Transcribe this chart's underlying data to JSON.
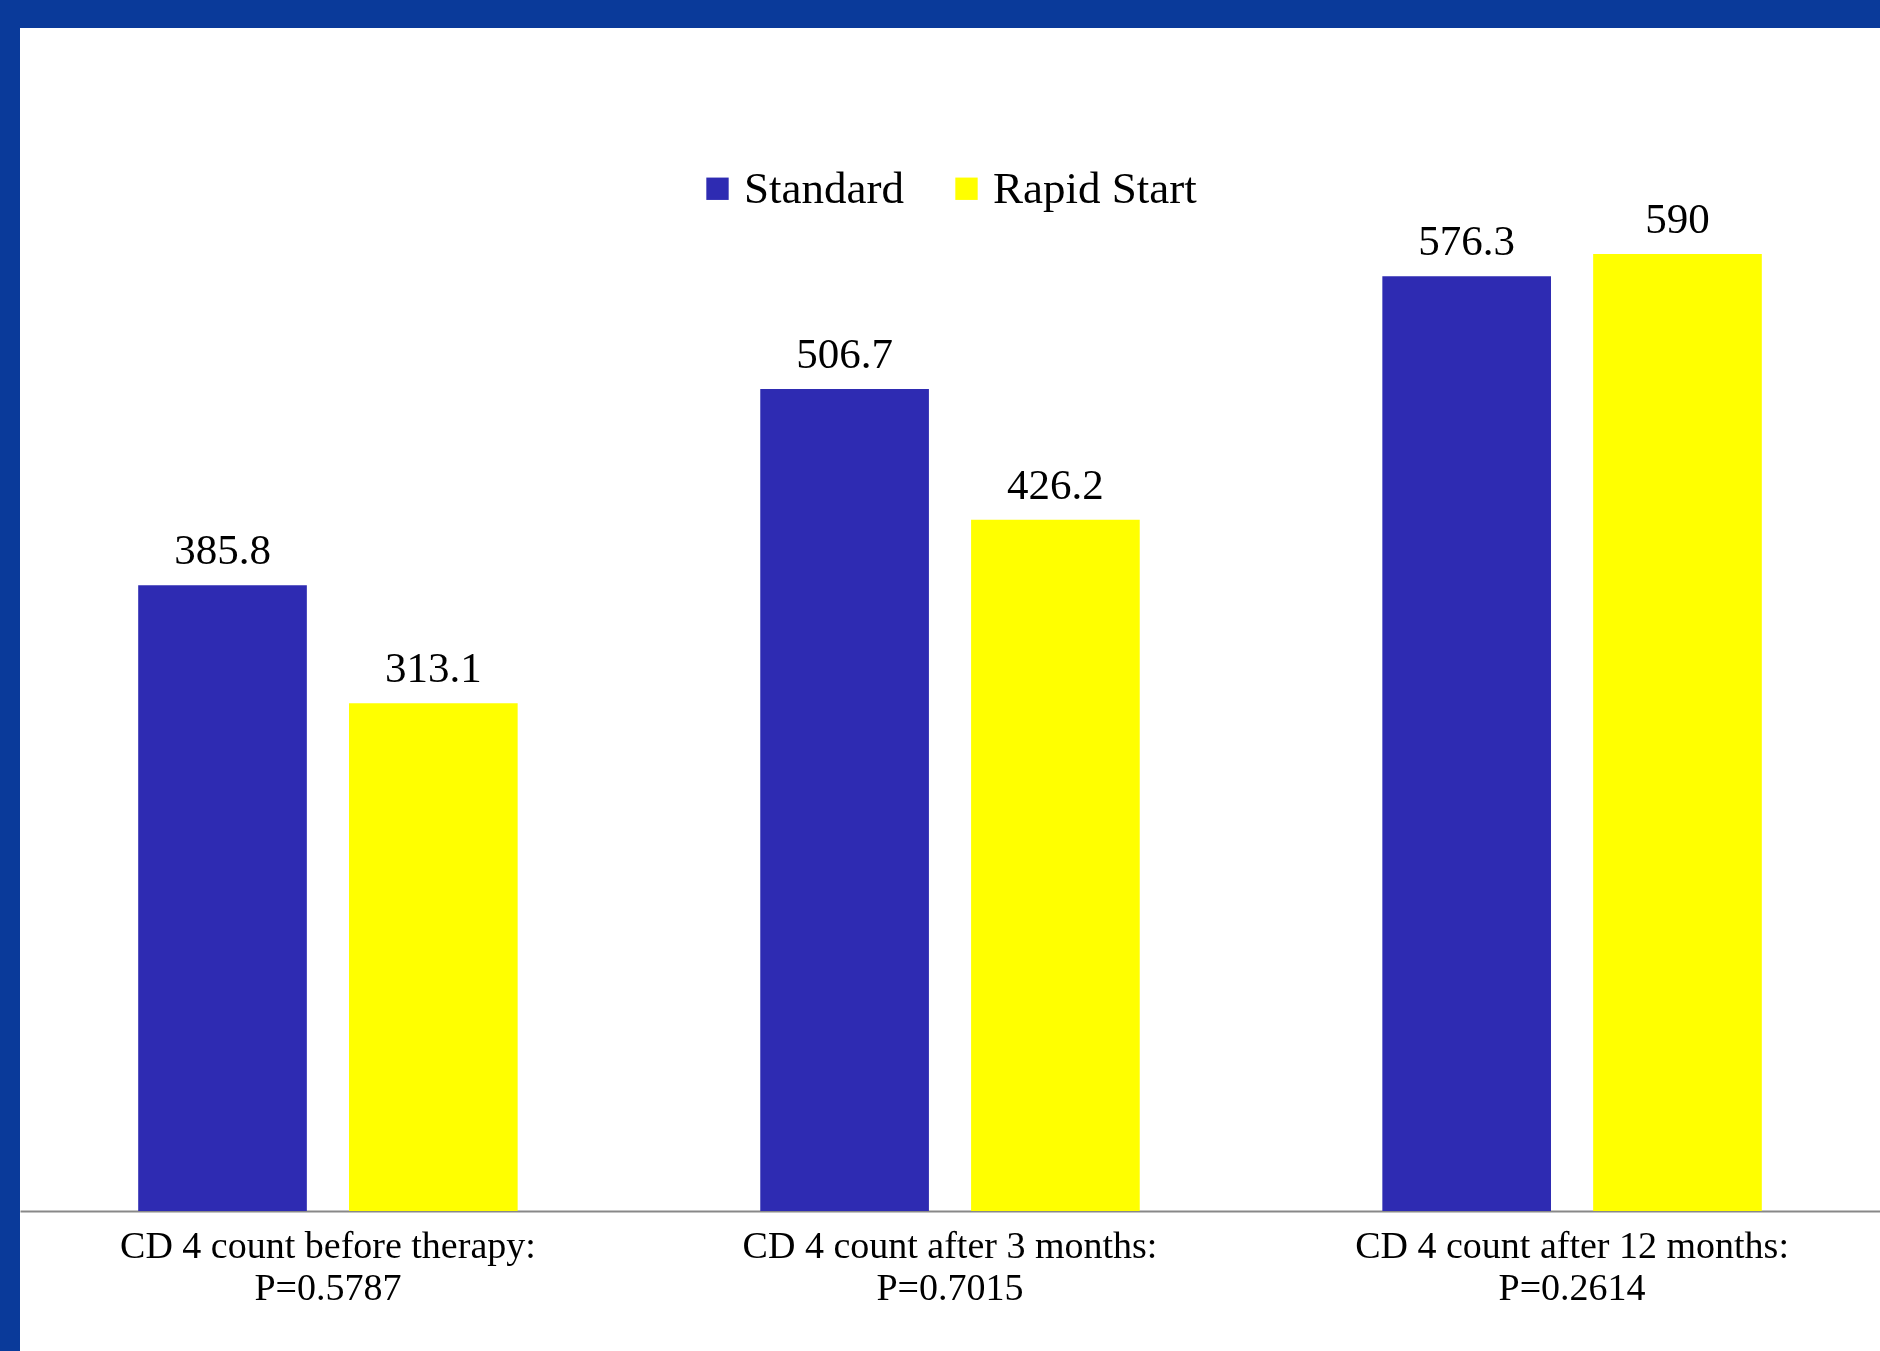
{
  "chart_data": {
    "type": "bar",
    "categories": [
      "CD 4 count before therapy:\nP=0.5787",
      "CD 4 count after 3 months:\nP=0.7015",
      "CD 4 count after 12 months:\nP=0.2614"
    ],
    "series": [
      {
        "name": "Standard",
        "color": "#2e2bb2",
        "values": [
          385.8,
          506.7,
          576.3
        ]
      },
      {
        "name": "Rapid Start",
        "color": "#ffff00",
        "values": [
          313.1,
          426.2,
          590
        ]
      }
    ],
    "data_labels": true,
    "legend": "top",
    "grid": false,
    "tick_labels": "x"
  }
}
